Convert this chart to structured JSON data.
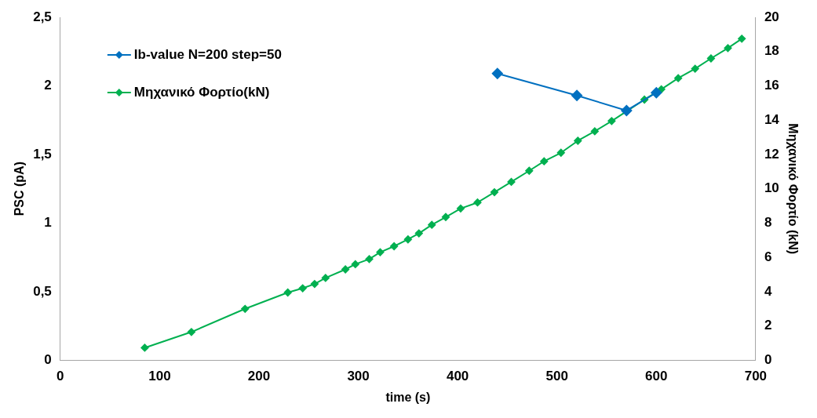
{
  "chart_data": {
    "type": "line",
    "xlabel": "time (s)",
    "ylabel": "PSC (pA)",
    "y2label": "Μηχανικό Φορτίο (kN)",
    "xlim": [
      0,
      700
    ],
    "xticks": [
      0,
      100,
      200,
      300,
      400,
      500,
      600,
      700
    ],
    "ylim": [
      0,
      2.5
    ],
    "yticks": [
      0,
      {
        "value": 0.5,
        "label": "0,5"
      },
      1,
      {
        "value": 1.5,
        "label": "1,5"
      },
      2,
      {
        "value": 2.5,
        "label": "2,5"
      }
    ],
    "y2lim": [
      0,
      20
    ],
    "y2ticks": [
      0,
      2,
      4,
      6,
      8,
      10,
      12,
      14,
      16,
      18,
      20
    ],
    "grid": false,
    "legend": "top left",
    "marker": "diamond",
    "line_style": "solid",
    "series": [
      {
        "name": "Ib-value N=200 step=50",
        "color": "#0070c0",
        "x": [
          440,
          520,
          570,
          600
        ],
        "values": [
          2.09,
          1.93,
          1.82,
          1.95
        ]
      },
      {
        "name": "Μηχανικό Φορτίο(kN)",
        "color": "#00b050",
        "axis": "y2",
        "x": [
          85,
          132,
          186,
          229,
          244,
          256,
          267,
          287,
          297,
          311,
          322,
          336,
          350,
          361,
          374,
          388,
          403,
          420,
          437,
          454,
          472,
          487,
          504,
          521,
          538,
          555,
          571,
          588,
          605,
          622,
          639,
          655,
          672,
          686
        ],
        "values": [
          0.73,
          1.65,
          3.0,
          3.95,
          4.2,
          4.45,
          4.8,
          5.3,
          5.6,
          5.9,
          6.3,
          6.65,
          7.05,
          7.4,
          7.9,
          8.35,
          8.85,
          9.2,
          9.8,
          10.4,
          11.05,
          11.6,
          12.1,
          12.8,
          13.35,
          13.95,
          14.55,
          15.2,
          15.8,
          16.45,
          17.0,
          17.6,
          18.2,
          18.75
        ]
      }
    ]
  }
}
